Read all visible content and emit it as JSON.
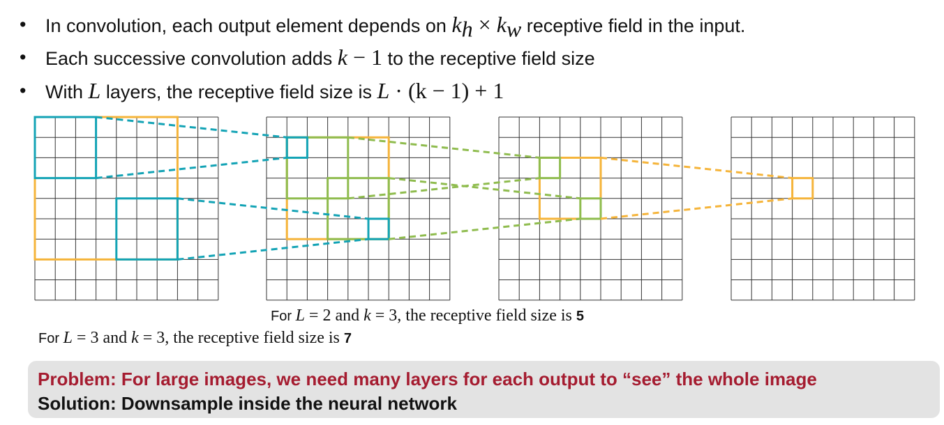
{
  "bullets": [
    {
      "pre": "In convolution, each output element depends on ",
      "math": "k",
      "sub1": "h",
      "times": " × ",
      "math2": "k",
      "sub2": "w",
      "post": " receptive field in the input."
    },
    {
      "pre": "Each successive convolution adds ",
      "math": "k",
      "op": " − ",
      "num": "1",
      "post": " to the receptive field size"
    },
    {
      "pre": "With ",
      "math": "L",
      "mid": " layers, the receptive field size is ",
      "formula_L": "L",
      "formula_rest": " · (k − 1) + 1"
    }
  ],
  "captions": {
    "l2": {
      "pre": "For ",
      "L": "L",
      "eq1": " = 2 and ",
      "k": "k",
      "eq2": " = 3, the receptive field size is ",
      "result": "5"
    },
    "l3": {
      "pre": "For ",
      "L": "L",
      "eq1": " = 3 and ",
      "k": "k",
      "eq2": " = 3, the receptive field size is ",
      "result": "7"
    }
  },
  "callout": {
    "problem": "Problem: For large images, we need many layers for each output to “see” the whole image",
    "solution": "Solution: Downsample inside the neural network"
  },
  "colors": {
    "teal": "#13a3b5",
    "orange": "#f5b43a",
    "green": "#8fbc4e",
    "problem_text": "#a51c30",
    "callout_bg": "#e3e3e3"
  },
  "grid": {
    "rows": 9,
    "cols": 9,
    "count": 4
  }
}
